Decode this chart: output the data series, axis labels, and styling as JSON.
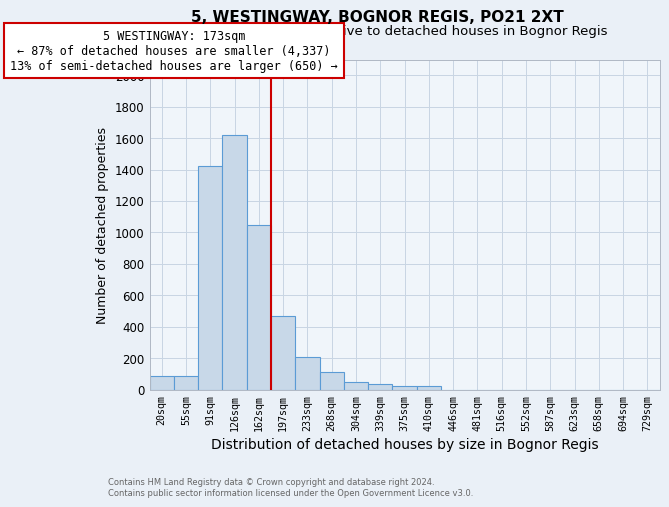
{
  "title1": "5, WESTINGWAY, BOGNOR REGIS, PO21 2XT",
  "title2": "Size of property relative to detached houses in Bognor Regis",
  "xlabel": "Distribution of detached houses by size in Bognor Regis",
  "ylabel": "Number of detached properties",
  "categories": [
    "20sqm",
    "55sqm",
    "91sqm",
    "126sqm",
    "162sqm",
    "197sqm",
    "233sqm",
    "268sqm",
    "304sqm",
    "339sqm",
    "375sqm",
    "410sqm",
    "446sqm",
    "481sqm",
    "516sqm",
    "552sqm",
    "587sqm",
    "623sqm",
    "658sqm",
    "694sqm",
    "729sqm"
  ],
  "values": [
    85,
    85,
    1420,
    1620,
    1050,
    470,
    205,
    110,
    45,
    35,
    20,
    20,
    0,
    0,
    0,
    0,
    0,
    0,
    0,
    0,
    0
  ],
  "bar_color": "#c8d8e8",
  "bar_edge_color": "#5b9bd5",
  "red_line_x": 4.5,
  "annotation_line1": "5 WESTINGWAY: 173sqm",
  "annotation_line2": "← 87% of detached houses are smaller (4,337)",
  "annotation_line3": "13% of semi-detached houses are larger (650) →",
  "annotation_box_color": "#ffffff",
  "annotation_border_color": "#cc0000",
  "ylim": [
    0,
    2100
  ],
  "yticks": [
    0,
    200,
    400,
    600,
    800,
    1000,
    1200,
    1400,
    1600,
    1800,
    2000
  ],
  "footer1": "Contains HM Land Registry data © Crown copyright and database right 2024.",
  "footer2": "Contains public sector information licensed under the Open Government Licence v3.0.",
  "background_color": "#eaf0f7",
  "plot_bg_color": "#f0f5fa",
  "grid_color": "#c8d5e3",
  "title1_fontsize": 11,
  "title2_fontsize": 9.5,
  "xlabel_fontsize": 10,
  "ylabel_fontsize": 9,
  "red_line_color": "#cc0000",
  "annotation_fontsize": 8.5
}
